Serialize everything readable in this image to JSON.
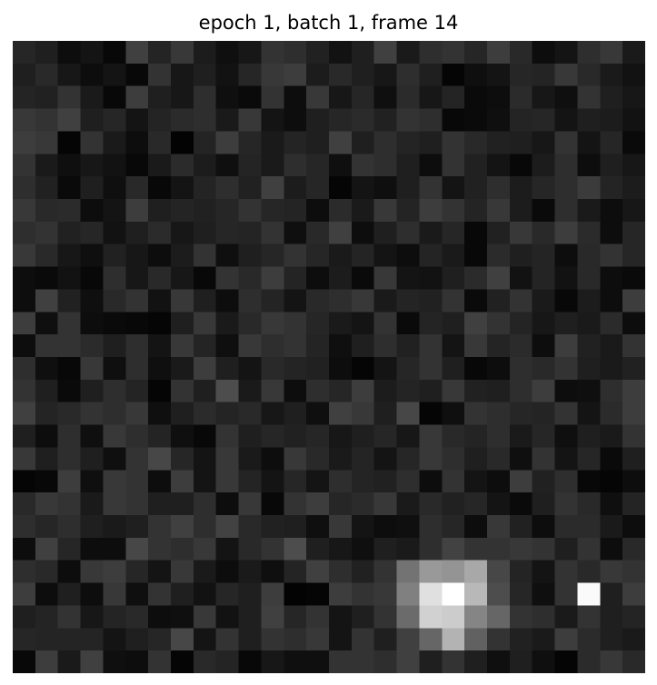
{
  "figure": {
    "title": "epoch 1, batch 1, frame 14"
  },
  "image": {
    "description_kind": "grayscale pixel grid",
    "grid_size": [
      29,
      29
    ],
    "colormap": "gray",
    "pixel_values": [
      [
        0.15,
        0.12,
        0.05,
        0.08,
        0.03,
        0.25,
        0.14,
        0.22,
        0.11,
        0.06,
        0.09,
        0.2,
        0.18,
        0.13,
        0.07,
        0.12,
        0.25,
        0.1,
        0.18,
        0.2,
        0.15,
        0.24,
        0.16,
        0.05,
        0.08,
        0.18,
        0.22,
        0.1,
        0.2
      ],
      [
        0.12,
        0.16,
        0.09,
        0.05,
        0.08,
        0.03,
        0.2,
        0.09,
        0.12,
        0.07,
        0.15,
        0.22,
        0.24,
        0.11,
        0.16,
        0.12,
        0.09,
        0.18,
        0.12,
        0.02,
        0.06,
        0.08,
        0.15,
        0.14,
        0.22,
        0.16,
        0.1,
        0.07,
        0.12
      ],
      [
        0.14,
        0.13,
        0.2,
        0.1,
        0.03,
        0.24,
        0.12,
        0.09,
        0.18,
        0.06,
        0.04,
        0.2,
        0.05,
        0.22,
        0.09,
        0.15,
        0.06,
        0.17,
        0.09,
        0.14,
        0.04,
        0.05,
        0.17,
        0.09,
        0.06,
        0.2,
        0.12,
        0.09,
        0.06
      ],
      [
        0.22,
        0.2,
        0.25,
        0.12,
        0.15,
        0.08,
        0.14,
        0.17,
        0.18,
        0.1,
        0.22,
        0.08,
        0.05,
        0.12,
        0.15,
        0.17,
        0.13,
        0.2,
        0.18,
        0.03,
        0.04,
        0.06,
        0.14,
        0.15,
        0.08,
        0.12,
        0.11,
        0.07,
        0.15
      ],
      [
        0.24,
        0.22,
        0.02,
        0.2,
        0.1,
        0.05,
        0.16,
        0.01,
        0.14,
        0.24,
        0.15,
        0.1,
        0.14,
        0.12,
        0.25,
        0.12,
        0.18,
        0.14,
        0.12,
        0.2,
        0.16,
        0.13,
        0.12,
        0.09,
        0.2,
        0.08,
        0.15,
        0.04,
        0.25
      ],
      [
        0.2,
        0.1,
        0.06,
        0.09,
        0.07,
        0.03,
        0.1,
        0.17,
        0.11,
        0.06,
        0.14,
        0.1,
        0.18,
        0.15,
        0.06,
        0.2,
        0.18,
        0.12,
        0.05,
        0.2,
        0.13,
        0.08,
        0.03,
        0.11,
        0.18,
        0.05,
        0.12,
        0.09,
        0.25
      ],
      [
        0.18,
        0.13,
        0.04,
        0.12,
        0.06,
        0.16,
        0.03,
        0.08,
        0.14,
        0.18,
        0.13,
        0.25,
        0.11,
        0.15,
        0.02,
        0.08,
        0.06,
        0.12,
        0.2,
        0.08,
        0.13,
        0.18,
        0.11,
        0.15,
        0.18,
        0.23,
        0.14,
        0.11,
        0.12
      ],
      [
        0.22,
        0.16,
        0.17,
        0.05,
        0.08,
        0.24,
        0.12,
        0.14,
        0.13,
        0.15,
        0.2,
        0.15,
        0.14,
        0.05,
        0.17,
        0.1,
        0.22,
        0.14,
        0.24,
        0.2,
        0.14,
        0.22,
        0.11,
        0.04,
        0.18,
        0.1,
        0.05,
        0.09,
        0.24
      ],
      [
        0.18,
        0.2,
        0.13,
        0.15,
        0.07,
        0.12,
        0.17,
        0.09,
        0.12,
        0.15,
        0.14,
        0.2,
        0.06,
        0.16,
        0.25,
        0.05,
        0.12,
        0.18,
        0.1,
        0.15,
        0.03,
        0.13,
        0.22,
        0.16,
        0.24,
        0.17,
        0.05,
        0.15,
        0.05
      ],
      [
        0.22,
        0.16,
        0.09,
        0.06,
        0.13,
        0.09,
        0.05,
        0.11,
        0.2,
        0.06,
        0.12,
        0.15,
        0.2,
        0.15,
        0.1,
        0.14,
        0.08,
        0.05,
        0.14,
        0.1,
        0.03,
        0.17,
        0.12,
        0.14,
        0.05,
        0.16,
        0.2,
        0.15,
        0.12
      ],
      [
        0.05,
        0.04,
        0.07,
        0.03,
        0.18,
        0.09,
        0.16,
        0.09,
        0.03,
        0.2,
        0.16,
        0.24,
        0.14,
        0.05,
        0.11,
        0.04,
        0.22,
        0.08,
        0.07,
        0.12,
        0.17,
        0.25,
        0.07,
        0.14,
        0.07,
        0.16,
        0.05,
        0.04,
        0.15
      ],
      [
        0.05,
        0.25,
        0.13,
        0.06,
        0.16,
        0.2,
        0.07,
        0.22,
        0.12,
        0.05,
        0.18,
        0.14,
        0.08,
        0.16,
        0.18,
        0.22,
        0.1,
        0.14,
        0.13,
        0.2,
        0.04,
        0.13,
        0.2,
        0.1,
        0.03,
        0.11,
        0.05,
        0.24,
        0.2
      ],
      [
        0.24,
        0.06,
        0.2,
        0.05,
        0.04,
        0.03,
        0.02,
        0.12,
        0.22,
        0.1,
        0.16,
        0.22,
        0.2,
        0.15,
        0.1,
        0.08,
        0.2,
        0.04,
        0.14,
        0.12,
        0.25,
        0.2,
        0.14,
        0.09,
        0.12,
        0.1,
        0.17,
        0.05,
        0.15
      ],
      [
        0.05,
        0.2,
        0.2,
        0.17,
        0.12,
        0.18,
        0.08,
        0.22,
        0.14,
        0.06,
        0.22,
        0.18,
        0.2,
        0.14,
        0.06,
        0.12,
        0.18,
        0.13,
        0.2,
        0.08,
        0.22,
        0.14,
        0.17,
        0.05,
        0.24,
        0.13,
        0.1,
        0.2,
        0.08
      ],
      [
        0.18,
        0.06,
        0.03,
        0.22,
        0.06,
        0.18,
        0.06,
        0.1,
        0.24,
        0.12,
        0.08,
        0.16,
        0.14,
        0.13,
        0.05,
        0.02,
        0.08,
        0.15,
        0.2,
        0.12,
        0.03,
        0.05,
        0.18,
        0.16,
        0.2,
        0.12,
        0.1,
        0.13,
        0.14
      ],
      [
        0.2,
        0.12,
        0.04,
        0.12,
        0.18,
        0.14,
        0.02,
        0.2,
        0.12,
        0.3,
        0.1,
        0.22,
        0.05,
        0.18,
        0.15,
        0.24,
        0.11,
        0.14,
        0.12,
        0.22,
        0.13,
        0.12,
        0.18,
        0.24,
        0.05,
        0.06,
        0.18,
        0.24,
        0.02
      ],
      [
        0.25,
        0.14,
        0.16,
        0.2,
        0.18,
        0.22,
        0.06,
        0.12,
        0.17,
        0.14,
        0.16,
        0.09,
        0.12,
        0.06,
        0.25,
        0.22,
        0.12,
        0.28,
        0.02,
        0.06,
        0.2,
        0.18,
        0.15,
        0.14,
        0.2,
        0.08,
        0.17,
        0.24,
        0.08
      ],
      [
        0.12,
        0.05,
        0.18,
        0.06,
        0.22,
        0.18,
        0.14,
        0.06,
        0.03,
        0.2,
        0.12,
        0.15,
        0.13,
        0.15,
        0.09,
        0.12,
        0.15,
        0.09,
        0.22,
        0.16,
        0.14,
        0.18,
        0.1,
        0.15,
        0.06,
        0.12,
        0.1,
        0.2,
        0.25
      ],
      [
        0.22,
        0.12,
        0.18,
        0.12,
        0.06,
        0.2,
        0.28,
        0.15,
        0.08,
        0.22,
        0.1,
        0.05,
        0.22,
        0.16,
        0.1,
        0.14,
        0.08,
        0.15,
        0.22,
        0.18,
        0.12,
        0.16,
        0.06,
        0.2,
        0.08,
        0.15,
        0.04,
        0.12,
        0.2
      ],
      [
        0.02,
        0.03,
        0.24,
        0.06,
        0.22,
        0.2,
        0.05,
        0.24,
        0.08,
        0.22,
        0.14,
        0.08,
        0.15,
        0.08,
        0.18,
        0.14,
        0.13,
        0.18,
        0.05,
        0.2,
        0.08,
        0.05,
        0.24,
        0.13,
        0.18,
        0.03,
        0.02,
        0.05,
        0.12
      ],
      [
        0.16,
        0.22,
        0.2,
        0.1,
        0.22,
        0.2,
        0.12,
        0.12,
        0.18,
        0.05,
        0.22,
        0.03,
        0.2,
        0.24,
        0.15,
        0.17,
        0.22,
        0.1,
        0.16,
        0.13,
        0.15,
        0.08,
        0.04,
        0.12,
        0.2,
        0.16,
        0.06,
        0.14,
        0.3
      ],
      [
        0.18,
        0.15,
        0.18,
        0.12,
        0.1,
        0.12,
        0.2,
        0.25,
        0.18,
        0.26,
        0.16,
        0.13,
        0.12,
        0.06,
        0.22,
        0.08,
        0.05,
        0.06,
        0.18,
        0.15,
        0.05,
        0.22,
        0.13,
        0.05,
        0.17,
        0.17,
        0.1,
        0.05,
        0.14
      ],
      [
        0.05,
        0.25,
        0.15,
        0.05,
        0.05,
        0.28,
        0.2,
        0.18,
        0.22,
        0.08,
        0.16,
        0.2,
        0.3,
        0.12,
        0.09,
        0.06,
        0.12,
        0.1,
        0.18,
        0.26,
        0.2,
        0.2,
        0.22,
        0.2,
        0.12,
        0.2,
        0.05,
        0.16,
        0.06
      ],
      [
        0.18,
        0.16,
        0.05,
        0.22,
        0.24,
        0.15,
        0.08,
        0.22,
        0.1,
        0.05,
        0.1,
        0.06,
        0.14,
        0.25,
        0.18,
        0.13,
        0.2,
        0.45,
        0.6,
        0.58,
        0.66,
        0.28,
        0.14,
        0.08,
        0.2,
        0.16,
        0.22,
        0.2,
        0.18
      ],
      [
        0.24,
        0.05,
        0.12,
        0.05,
        0.22,
        0.06,
        0.2,
        0.12,
        0.07,
        0.15,
        0.12,
        0.24,
        0.01,
        0.02,
        0.24,
        0.2,
        0.22,
        0.5,
        0.88,
        1.0,
        0.72,
        0.3,
        0.15,
        0.06,
        0.2,
        0.98,
        0.12,
        0.24,
        0.1
      ],
      [
        0.12,
        0.14,
        0.2,
        0.09,
        0.14,
        0.16,
        0.05,
        0.06,
        0.22,
        0.07,
        0.12,
        0.25,
        0.15,
        0.2,
        0.08,
        0.12,
        0.2,
        0.42,
        0.82,
        0.8,
        0.52,
        0.4,
        0.2,
        0.18,
        0.1,
        0.2,
        0.12,
        0.14,
        0.25
      ],
      [
        0.15,
        0.14,
        0.14,
        0.14,
        0.08,
        0.12,
        0.15,
        0.28,
        0.08,
        0.2,
        0.12,
        0.2,
        0.18,
        0.22,
        0.08,
        0.2,
        0.12,
        0.25,
        0.4,
        0.7,
        0.38,
        0.2,
        0.13,
        0.1,
        0.24,
        0.17,
        0.12,
        0.1,
        0.15
      ],
      [
        0.03,
        0.24,
        0.1,
        0.25,
        0.06,
        0.05,
        0.2,
        0.02,
        0.16,
        0.14,
        0.03,
        0.09,
        0.06,
        0.06,
        0.2,
        0.2,
        0.18,
        0.25,
        0.12,
        0.2,
        0.12,
        0.06,
        0.12,
        0.06,
        0.02,
        0.17,
        0.22,
        0.16,
        0.2
      ]
    ]
  }
}
